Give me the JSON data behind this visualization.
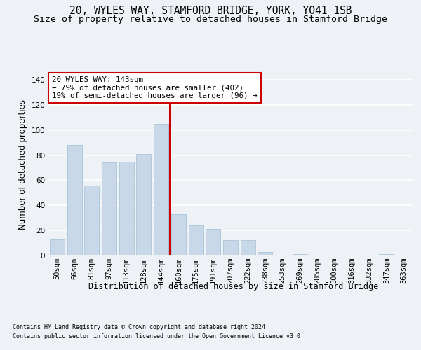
{
  "title_line1": "20, WYLES WAY, STAMFORD BRIDGE, YORK, YO41 1SB",
  "title_line2": "Size of property relative to detached houses in Stamford Bridge",
  "xlabel": "Distribution of detached houses by size in Stamford Bridge",
  "ylabel": "Number of detached properties",
  "categories": [
    "50sqm",
    "66sqm",
    "81sqm",
    "97sqm",
    "113sqm",
    "128sqm",
    "144sqm",
    "160sqm",
    "175sqm",
    "191sqm",
    "207sqm",
    "222sqm",
    "238sqm",
    "253sqm",
    "269sqm",
    "285sqm",
    "300sqm",
    "316sqm",
    "332sqm",
    "347sqm",
    "363sqm"
  ],
  "values": [
    13,
    88,
    56,
    74,
    75,
    81,
    105,
    33,
    24,
    21,
    12,
    12,
    3,
    0,
    1,
    0,
    0,
    0,
    0,
    1,
    0
  ],
  "bar_color": "#c8d8e8",
  "bar_edge_color": "#a8c4d8",
  "vline_color": "#cc0000",
  "ylim": [
    0,
    145
  ],
  "yticks": [
    0,
    20,
    40,
    60,
    80,
    100,
    120,
    140
  ],
  "annotation_text": "20 WYLES WAY: 143sqm\n← 79% of detached houses are smaller (402)\n19% of semi-detached houses are larger (96) →",
  "annotation_box_color": "#ffffff",
  "annotation_box_edge": "#cc0000",
  "footnote1": "Contains HM Land Registry data © Crown copyright and database right 2024.",
  "footnote2": "Contains public sector information licensed under the Open Government Licence v3.0.",
  "background_color": "#eef2f7",
  "grid_color": "#ffffff",
  "title_fontsize": 10.5,
  "subtitle_fontsize": 9.5,
  "axis_label_fontsize": 8.5,
  "tick_fontsize": 7.5,
  "footnote_fontsize": 6.0
}
